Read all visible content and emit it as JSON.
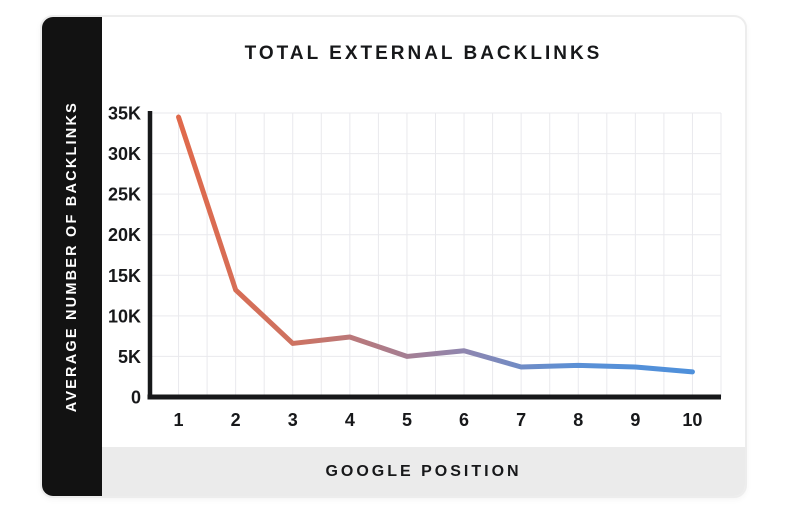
{
  "chart_data": {
    "type": "line",
    "title": "TOTAL EXTERNAL BACKLINKS",
    "xlabel": "GOOGLE POSITION",
    "ylabel": "AVERAGE NUMBER OF BACKLINKS",
    "x": [
      1,
      2,
      3,
      4,
      5,
      6,
      7,
      8,
      9,
      10
    ],
    "values": [
      34500,
      13200,
      6600,
      7400,
      5000,
      5700,
      3700,
      3900,
      3700,
      3100
    ],
    "xticklabels": [
      "1",
      "2",
      "3",
      "4",
      "5",
      "6",
      "7",
      "8",
      "9",
      "10"
    ],
    "yticklabels": [
      "0",
      "5K",
      "10K",
      "15K",
      "20K",
      "25K",
      "30K",
      "35K"
    ],
    "ylim": [
      0,
      35000
    ],
    "ytick_step": 5000,
    "grid": true,
    "x_minor_grid": true,
    "legend": "none",
    "line_width": 5,
    "line_gradient": [
      {
        "offset": 0,
        "color": "#E0694B"
      },
      {
        "offset": 0.22,
        "color": "#CE7260"
      },
      {
        "offset": 0.33,
        "color": "#BC7878"
      },
      {
        "offset": 0.44,
        "color": "#A57E92"
      },
      {
        "offset": 0.56,
        "color": "#8E86B0"
      },
      {
        "offset": 0.67,
        "color": "#6F8CC6"
      },
      {
        "offset": 0.78,
        "color": "#5A90D6"
      },
      {
        "offset": 1,
        "color": "#4E90DB"
      }
    ]
  },
  "colors": {
    "text": "#17181a",
    "axis": "#17181a",
    "grid": "#e9e9ed",
    "sidebar_bg": "#121212",
    "sidebar_text": "#ffffff",
    "band_bg": "#ebebeb",
    "card_bg": "#ffffff",
    "card_border": "#ededed",
    "page_bg": "#ffffff"
  }
}
